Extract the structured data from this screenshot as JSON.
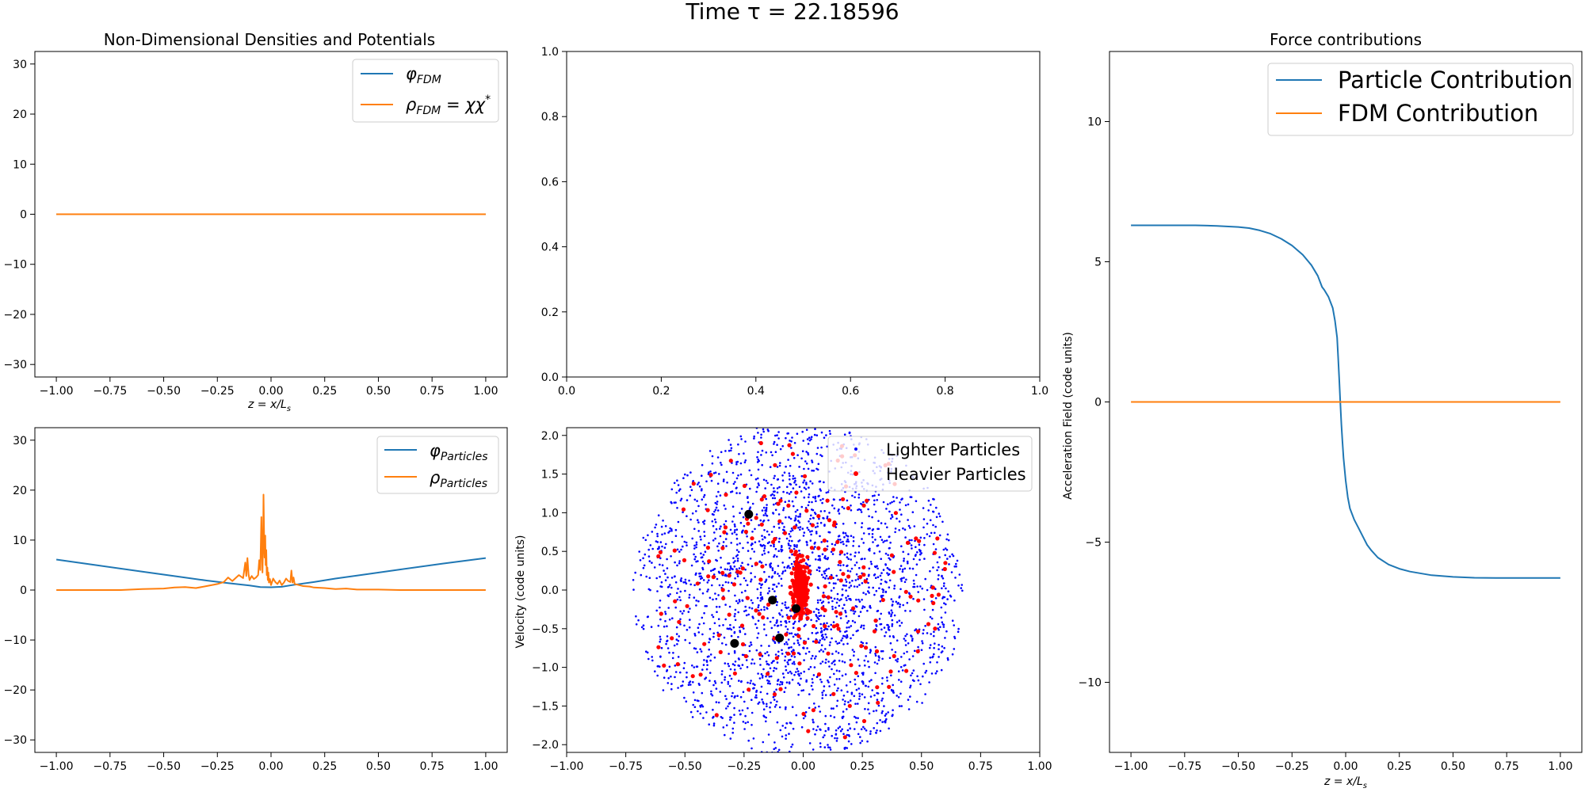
{
  "figure": {
    "title": "Time τ = 22.18596"
  },
  "chart_data": [
    {
      "id": "fdm",
      "type": "line",
      "title": "Non-Dimensional Densities and Potentials",
      "xlabel": "z = x/L_s",
      "xlabel_main": "z = x/L",
      "xlabel_sub": "s",
      "ylabel": "",
      "xlim": [
        -1.1,
        1.1
      ],
      "ylim": [
        -32.5,
        32.5
      ],
      "xticks": [
        -1.0,
        -0.75,
        -0.5,
        -0.25,
        0.0,
        0.25,
        0.5,
        0.75,
        1.0
      ],
      "xtick_labels": [
        "−1.00",
        "−0.75",
        "−0.50",
        "−0.25",
        "0.00",
        "0.25",
        "0.50",
        "0.75",
        "1.00"
      ],
      "yticks": [
        -30,
        -20,
        -10,
        0,
        10,
        20,
        30
      ],
      "ytick_labels": [
        "−30",
        "−20",
        "−10",
        "0",
        "10",
        "20",
        "30"
      ],
      "legend_position": "top-right",
      "series": [
        {
          "name": "φ_FDM",
          "main": "φ",
          "sub": "FDM",
          "sup": "",
          "color": "#1f77b4",
          "x": [
            -1,
            1
          ],
          "y": [
            0,
            0
          ]
        },
        {
          "name": "ρ_FDM = χχ*",
          "main": "ρ",
          "sub": "FDM",
          "tail": " = χχ",
          "sup": "*",
          "color": "#ff7f0e",
          "x": [
            -1,
            1
          ],
          "y": [
            0,
            0
          ]
        }
      ]
    },
    {
      "id": "empty",
      "type": "line",
      "title": "",
      "xlabel": "",
      "ylabel": "",
      "xlim": [
        0,
        1
      ],
      "ylim": [
        0,
        1
      ],
      "xticks": [
        0,
        0.2,
        0.4,
        0.6,
        0.8,
        1.0
      ],
      "xtick_labels": [
        "0.0",
        "0.2",
        "0.4",
        "0.6",
        "0.8",
        "1.0"
      ],
      "yticks": [
        0,
        0.2,
        0.4,
        0.6,
        0.8,
        1.0
      ],
      "ytick_labels": [
        "0.0",
        "0.2",
        "0.4",
        "0.6",
        "0.8",
        "1.0"
      ],
      "series": []
    },
    {
      "id": "force",
      "type": "line",
      "title": "Force contributions",
      "xlabel": "z = x/L_s",
      "xlabel_main": "z = x/L",
      "xlabel_sub": "s",
      "ylabel": "Acceleration Field (code units)",
      "xlim": [
        -1.1,
        1.1
      ],
      "ylim": [
        -12.5,
        12.5
      ],
      "xticks": [
        -1.0,
        -0.75,
        -0.5,
        -0.25,
        0.0,
        0.25,
        0.5,
        0.75,
        1.0
      ],
      "xtick_labels": [
        "−1.00",
        "−0.75",
        "−0.50",
        "−0.25",
        "0.00",
        "0.25",
        "0.50",
        "0.75",
        "1.00"
      ],
      "yticks": [
        -10,
        -5,
        0,
        5,
        10
      ],
      "ytick_labels": [
        "−10",
        "−5",
        "0",
        "5",
        "10"
      ],
      "legend_position": "top-right",
      "series": [
        {
          "name": "Particle Contribution",
          "color": "#1f77b4",
          "x": [
            -1.0,
            -0.9,
            -0.8,
            -0.7,
            -0.6,
            -0.5,
            -0.45,
            -0.4,
            -0.35,
            -0.3,
            -0.25,
            -0.2,
            -0.16,
            -0.13,
            -0.11,
            -0.1,
            -0.08,
            -0.06,
            -0.05,
            -0.04,
            -0.035,
            -0.03,
            -0.025,
            -0.02,
            -0.015,
            -0.01,
            0.0,
            0.01,
            0.02,
            0.04,
            0.06,
            0.08,
            0.1,
            0.12,
            0.15,
            0.2,
            0.25,
            0.3,
            0.4,
            0.5,
            0.6,
            0.7,
            0.8,
            0.9,
            1.0
          ],
          "y": [
            6.3,
            6.3,
            6.3,
            6.3,
            6.28,
            6.24,
            6.2,
            6.12,
            6.0,
            5.82,
            5.58,
            5.25,
            4.88,
            4.5,
            4.1,
            4.0,
            3.75,
            3.35,
            2.9,
            2.3,
            1.6,
            0.8,
            0.0,
            -0.8,
            -1.4,
            -2.0,
            -2.8,
            -3.4,
            -3.8,
            -4.2,
            -4.5,
            -4.8,
            -5.1,
            -5.3,
            -5.55,
            -5.8,
            -5.95,
            -6.05,
            -6.18,
            -6.24,
            -6.27,
            -6.28,
            -6.28,
            -6.28,
            -6.28
          ]
        },
        {
          "name": "FDM Contribution",
          "color": "#ff7f0e",
          "x": [
            -1,
            1
          ],
          "y": [
            0,
            0
          ]
        }
      ]
    },
    {
      "id": "particles",
      "type": "line",
      "title": "",
      "xlabel": "",
      "ylabel": "",
      "xlim": [
        -1.1,
        1.1
      ],
      "ylim": [
        -32.5,
        32.5
      ],
      "xticks": [
        -1.0,
        -0.75,
        -0.5,
        -0.25,
        0.0,
        0.25,
        0.5,
        0.75,
        1.0
      ],
      "xtick_labels": [
        "−1.00",
        "−0.75",
        "−0.50",
        "−0.25",
        "0.00",
        "0.25",
        "0.50",
        "0.75",
        "1.00"
      ],
      "yticks": [
        -30,
        -20,
        -10,
        0,
        10,
        20,
        30
      ],
      "ytick_labels": [
        "−30",
        "−20",
        "−10",
        "0",
        "10",
        "20",
        "30"
      ],
      "legend_position": "top-right",
      "series": [
        {
          "name": "φ_Particles",
          "main": "φ",
          "sub": "Particles",
          "color": "#1f77b4",
          "x": [
            -1.0,
            -0.8,
            -0.6,
            -0.4,
            -0.3,
            -0.2,
            -0.1,
            -0.05,
            0.0,
            0.05,
            0.1,
            0.2,
            0.3,
            0.4,
            0.6,
            0.8,
            1.0
          ],
          "y": [
            6.1,
            4.9,
            3.7,
            2.5,
            1.9,
            1.4,
            0.9,
            0.6,
            0.55,
            0.65,
            1.0,
            1.6,
            2.3,
            2.9,
            4.1,
            5.3,
            6.4
          ]
        },
        {
          "name": "ρ_Particles",
          "main": "ρ",
          "sub": "Particles",
          "color": "#ff7f0e",
          "x": [
            -1.0,
            -0.7,
            -0.6,
            -0.5,
            -0.45,
            -0.4,
            -0.35,
            -0.3,
            -0.25,
            -0.22,
            -0.2,
            -0.18,
            -0.15,
            -0.13,
            -0.12,
            -0.115,
            -0.11,
            -0.105,
            -0.1,
            -0.09,
            -0.08,
            -0.07,
            -0.06,
            -0.055,
            -0.05,
            -0.045,
            -0.04,
            -0.037,
            -0.035,
            -0.032,
            -0.03,
            -0.027,
            -0.025,
            -0.022,
            -0.02,
            -0.017,
            -0.015,
            -0.012,
            -0.01,
            -0.005,
            0.0,
            0.01,
            0.02,
            0.03,
            0.04,
            0.05,
            0.06,
            0.07,
            0.08,
            0.09,
            0.095,
            0.1,
            0.105,
            0.11,
            0.13,
            0.15,
            0.18,
            0.2,
            0.25,
            0.3,
            0.35,
            0.4,
            0.5,
            0.6,
            1.0
          ],
          "y": [
            0,
            0,
            0.2,
            0.3,
            0.5,
            0.6,
            0.4,
            0.8,
            1.2,
            1.6,
            2.5,
            1.8,
            3.0,
            2.4,
            5.5,
            2.8,
            6.4,
            3.2,
            2.0,
            2.8,
            2.2,
            2.5,
            3.0,
            6.0,
            4.0,
            14.6,
            3.5,
            9.0,
            19.1,
            10.5,
            6.5,
            10.9,
            5.0,
            8.0,
            3.0,
            4.5,
            2.0,
            3.5,
            1.5,
            2.2,
            1.0,
            2.3,
            1.6,
            1.2,
            1.9,
            1.0,
            1.5,
            2.3,
            1.8,
            1.6,
            3.9,
            1.5,
            2.5,
            1.2,
            1.0,
            0.8,
            0.7,
            0.5,
            0.4,
            0.2,
            0.3,
            0.1,
            0.1,
            0,
            0
          ]
        }
      ]
    },
    {
      "id": "phase",
      "type": "scatter",
      "title": "",
      "xlabel": "",
      "ylabel": "Velocity (code units)",
      "xlim": [
        -1.0,
        1.0
      ],
      "ylim": [
        -2.1,
        2.1
      ],
      "xticks": [
        -1.0,
        -0.75,
        -0.5,
        -0.25,
        0.0,
        0.25,
        0.5,
        0.75,
        1.0
      ],
      "xtick_labels": [
        "−1.00",
        "−0.75",
        "−0.50",
        "−0.25",
        "0.00",
        "0.25",
        "0.50",
        "0.75",
        "1.00"
      ],
      "yticks": [
        -2.0,
        -1.5,
        -1.0,
        -0.5,
        0.0,
        0.5,
        1.0,
        1.5,
        2.0
      ],
      "ytick_labels": [
        "−2.0",
        "−1.5",
        "−1.0",
        "−0.5",
        "0.0",
        "0.5",
        "1.0",
        "1.5",
        "2.0"
      ],
      "legend_position": "top-right",
      "series": [
        {
          "name": "Lighter Particles",
          "color": "#0000ff",
          "approx_count": 2600,
          "velocity_spread_per_position": 2.3
        },
        {
          "name": "Heavier Particles",
          "color": "#ff0000",
          "approx_count": 420,
          "core_x": [
            -0.08,
            0.08
          ],
          "core_y": [
            -0.6,
            0.9
          ]
        },
        {
          "name": "Black markers",
          "color": "#000000",
          "x": [
            -0.23,
            -0.13,
            -0.1,
            -0.03,
            -0.29
          ],
          "y": [
            0.98,
            -0.13,
            -0.62,
            -0.24,
            -0.69
          ]
        }
      ]
    }
  ]
}
